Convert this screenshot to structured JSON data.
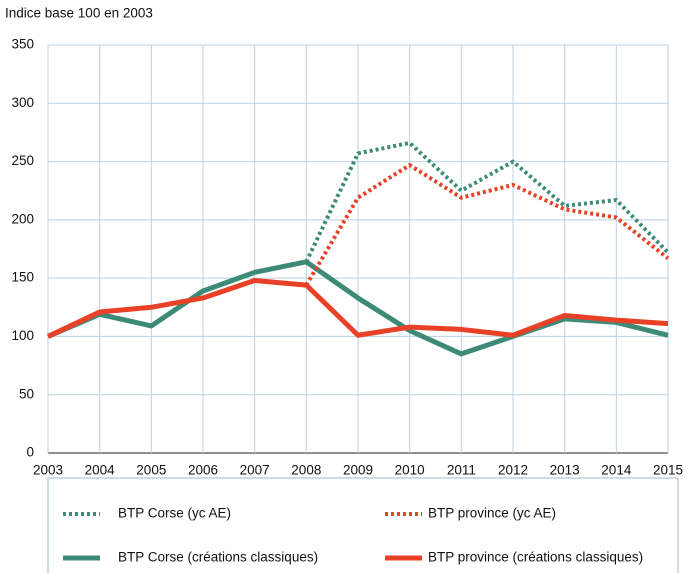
{
  "chart_data": {
    "type": "line",
    "ylabel": "Indice base 100 en 2003",
    "x": [
      2003,
      2004,
      2005,
      2006,
      2007,
      2008,
      2009,
      2010,
      2011,
      2012,
      2013,
      2014,
      2015
    ],
    "xlim": [
      2003,
      2015
    ],
    "xticks": [
      2003,
      2004,
      2005,
      2006,
      2007,
      2008,
      2009,
      2010,
      2011,
      2012,
      2013,
      2014,
      2015
    ],
    "ylim": [
      0,
      350
    ],
    "yticks": [
      0,
      50,
      100,
      150,
      200,
      250,
      300,
      350
    ],
    "grid": true,
    "legend": "bottom",
    "series": [
      {
        "name": "BTP Corse (yc AE)",
        "color": "#3d8b77",
        "dotted": true,
        "values": [
          null,
          null,
          null,
          null,
          null,
          164,
          257,
          266,
          225,
          250,
          212,
          217,
          172
        ]
      },
      {
        "name": "BTP province (yc AE)",
        "color": "#e84127",
        "dotted": true,
        "values": [
          null,
          null,
          null,
          null,
          null,
          144,
          219,
          247,
          219,
          230,
          209,
          202,
          167
        ]
      },
      {
        "name": "BTP Corse (créations classiques)",
        "color": "#3d8b77",
        "dotted": false,
        "values": [
          100,
          119,
          109,
          139,
          155,
          164,
          133,
          105,
          85,
          100,
          115,
          112,
          101
        ]
      },
      {
        "name": "BTP province (créations classiques)",
        "color": "#e84127",
        "dotted": false,
        "values": [
          100,
          121,
          125,
          133,
          148,
          144,
          101,
          108,
          106,
          101,
          118,
          114,
          111
        ]
      }
    ]
  }
}
